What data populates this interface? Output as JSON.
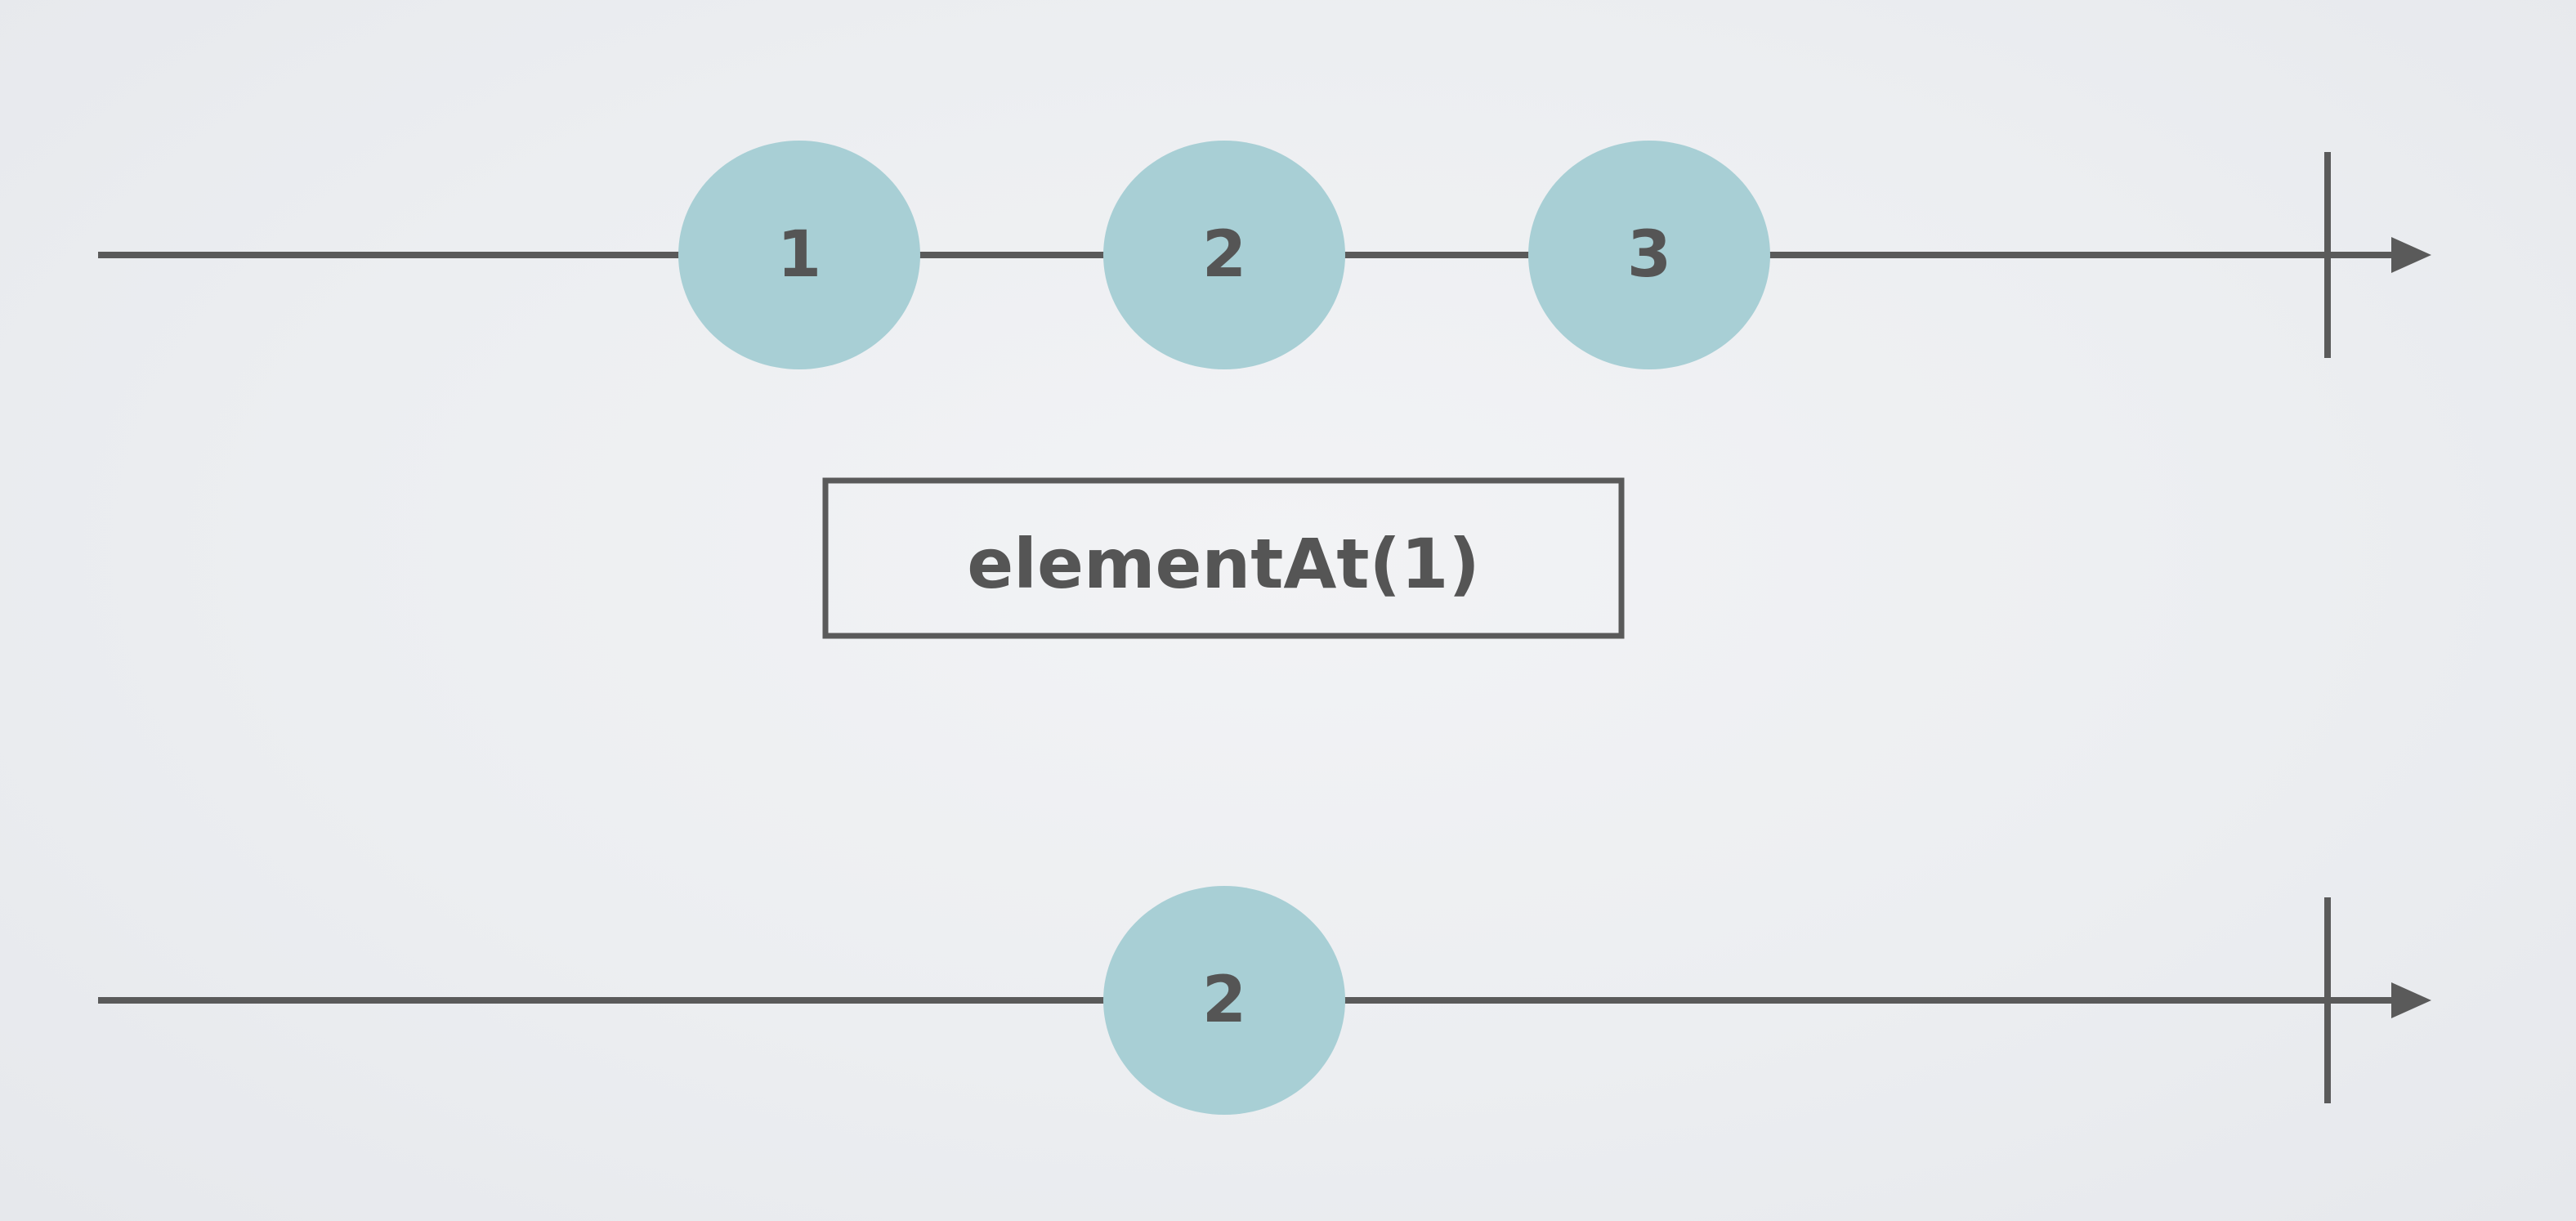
{
  "colors": {
    "line": "#5a5a5a",
    "marble_fill": "#a8cfd5",
    "text": "#555555",
    "operator_border": "#5a5a5a"
  },
  "source_timeline": {
    "marbles": [
      {
        "label": "1",
        "order": 1
      },
      {
        "label": "2",
        "order": 2
      },
      {
        "label": "3",
        "order": 3
      }
    ],
    "completed": true
  },
  "operator": {
    "label": "elementAt(1)"
  },
  "result_timeline": {
    "marbles": [
      {
        "label": "2",
        "order": 2
      }
    ],
    "completed": true
  }
}
